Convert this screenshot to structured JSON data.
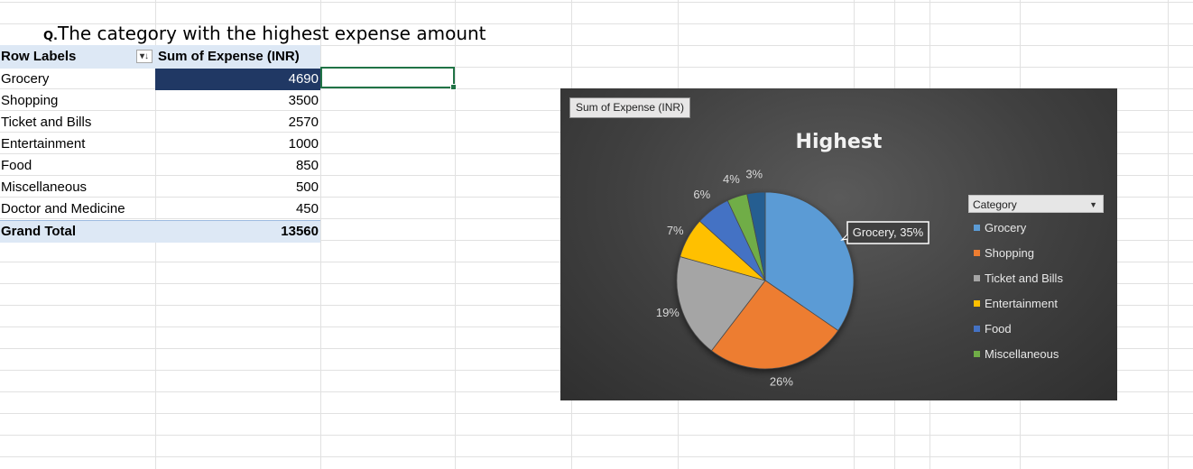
{
  "heading": {
    "prefix": "Q.",
    "text": "The category with the highest expense amount"
  },
  "pivot": {
    "row_labels_header": "Row Labels",
    "value_header": "Sum of Expense (INR)",
    "filter_icon": "sort-desc-filter-icon",
    "rows": [
      {
        "label": "Grocery",
        "value": "4690"
      },
      {
        "label": "Shopping",
        "value": "3500"
      },
      {
        "label": "Ticket and Bills",
        "value": "2570"
      },
      {
        "label": "Entertainment",
        "value": "1000"
      },
      {
        "label": "Food",
        "value": "850"
      },
      {
        "label": "Miscellaneous",
        "value": "500"
      },
      {
        "label": "Doctor and Medicine",
        "value": "450"
      }
    ],
    "total_label": "Grand Total",
    "total_value": "13560",
    "selected_row": 0
  },
  "chart": {
    "field_button": "Sum of Expense (INR)",
    "legend_button": "Category",
    "colors": [
      "#5b9bd5",
      "#ed7d31",
      "#a5a5a5",
      "#ffc000",
      "#4472c4",
      "#70ad47",
      "#255e91"
    ]
  },
  "chart_data": {
    "type": "pie",
    "title": "Highest",
    "categories": [
      "Grocery",
      "Shopping",
      "Ticket and Bills",
      "Entertainment",
      "Food",
      "Miscellaneous",
      "Doctor and Medicine"
    ],
    "values": [
      4690,
      3500,
      2570,
      1000,
      850,
      500,
      450
    ],
    "data_labels": [
      "Grocery, 35%",
      "26%",
      "19%",
      "7%",
      "6%",
      "4%",
      "3%"
    ],
    "legend_entries": [
      "Grocery",
      "Shopping",
      "Ticket and Bills",
      "Entertainment",
      "Food",
      "Miscellaneous"
    ],
    "legend_position": "right"
  }
}
